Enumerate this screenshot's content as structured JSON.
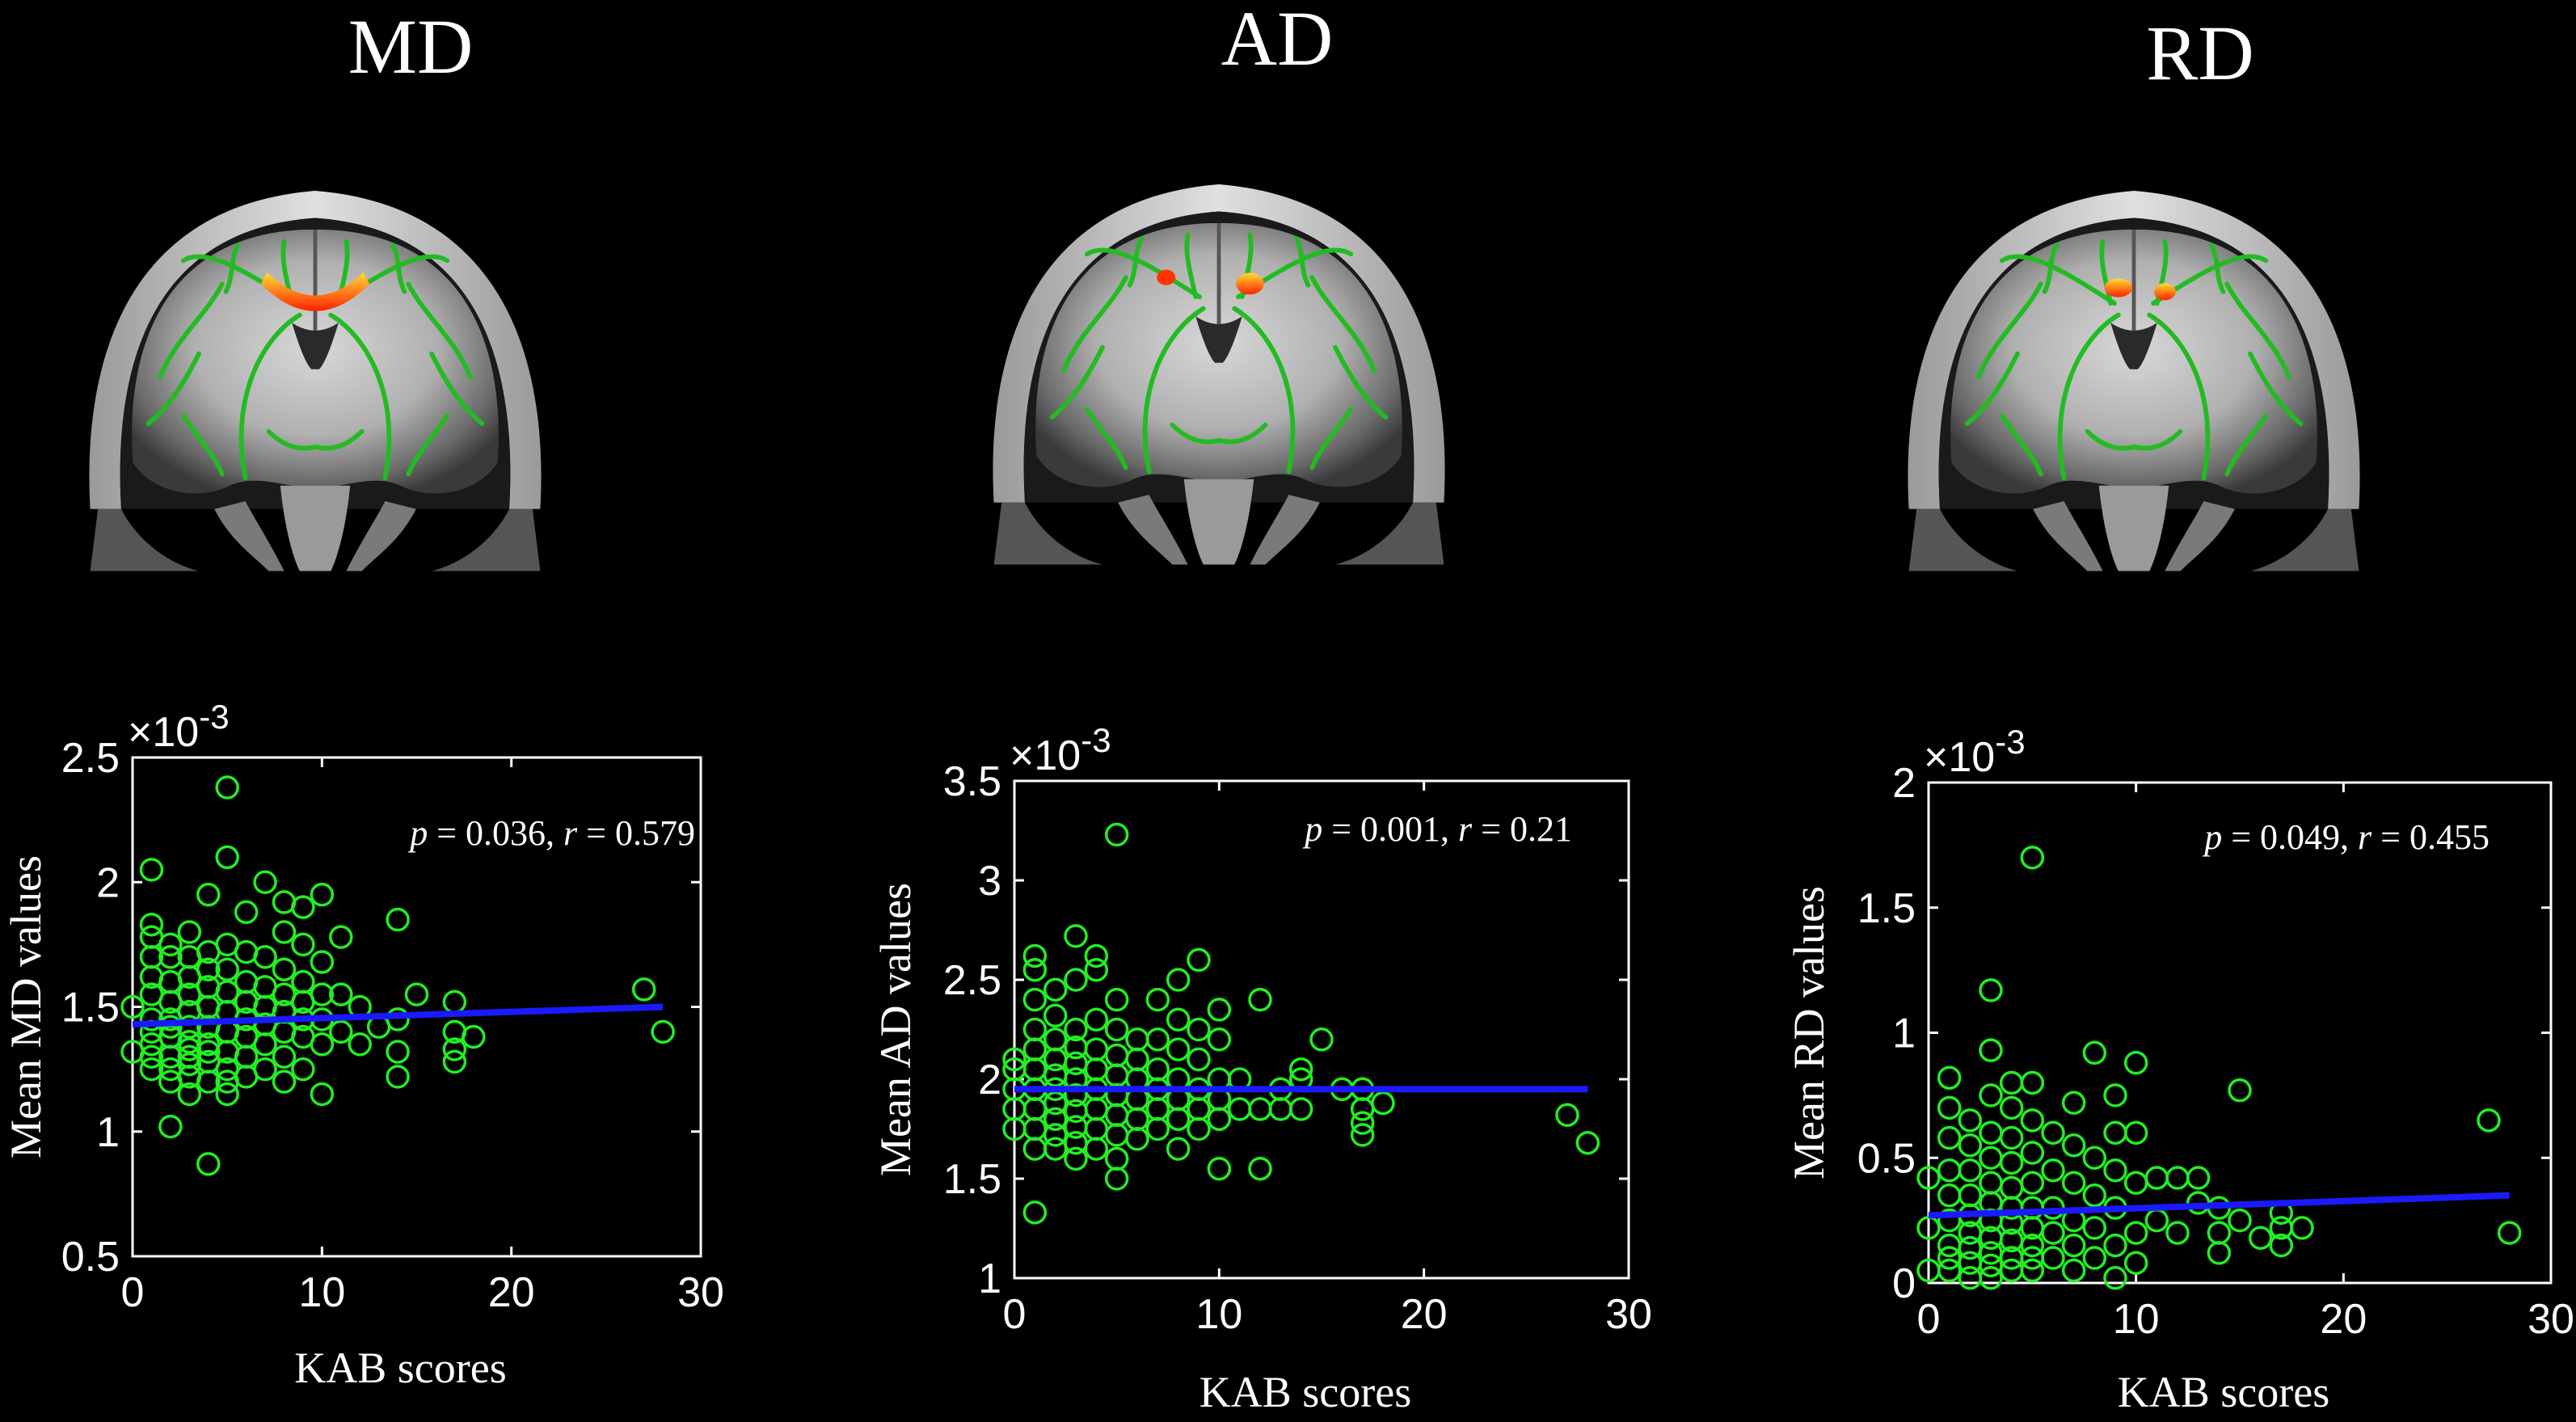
{
  "panels": [
    {
      "title": "MD",
      "annotation": {
        "p_label": "p",
        "p_value": " = 0.036, ",
        "r_label": "r",
        "r_value": " = 0.579"
      },
      "exponent": "×10",
      "exponent_power": "-3",
      "brain_highlight": "single-arc"
    },
    {
      "title": "AD",
      "annotation": {
        "p_label": "p",
        "p_value": " = 0.001, ",
        "r_label": "r",
        "r_value": " = 0.21"
      },
      "exponent": "×10",
      "exponent_power": "-3",
      "brain_highlight": "two-spots"
    },
    {
      "title": "RD",
      "annotation": {
        "p_label": "p",
        "p_value": " = 0.049, ",
        "r_label": "r",
        "r_value": " = 0.455"
      },
      "exponent": "×10",
      "exponent_power": "-3",
      "brain_highlight": "two-spots"
    }
  ],
  "colors": {
    "background": "#000000",
    "points": "#22ee22",
    "fit_line": "#1a1aff",
    "axes": "#ffffff",
    "tract": "#22bb22",
    "highlight": "#ff3300"
  },
  "chart_data": [
    {
      "type": "scatter",
      "title": "",
      "xlabel": "KAB scores",
      "ylabel": "Mean MD values",
      "xlim": [
        0,
        30
      ],
      "ylim": [
        0.5,
        2.5
      ],
      "xticks": [
        "0",
        "10",
        "20",
        "30"
      ],
      "yticks": [
        "0.5",
        "1",
        "1.5",
        "2",
        "2.5"
      ],
      "y_scale_note": "×10-3",
      "fit": {
        "x": [
          0,
          28
        ],
        "y": [
          1.43,
          1.5
        ]
      },
      "points": [
        [
          0,
          1.5
        ],
        [
          0,
          1.32
        ],
        [
          1,
          1.25
        ],
        [
          1,
          1.35
        ],
        [
          1,
          1.45
        ],
        [
          1,
          1.55
        ],
        [
          1,
          1.62
        ],
        [
          1,
          1.7
        ],
        [
          1,
          1.78
        ],
        [
          1,
          1.83
        ],
        [
          1,
          2.05
        ],
        [
          1,
          1.4
        ],
        [
          1,
          1.3
        ],
        [
          2,
          1.2
        ],
        [
          2,
          1.3
        ],
        [
          2,
          1.38
        ],
        [
          2,
          1.45
        ],
        [
          2,
          1.52
        ],
        [
          2,
          1.6
        ],
        [
          2,
          1.7
        ],
        [
          2,
          1.75
        ],
        [
          2,
          1.02
        ],
        [
          2,
          1.25
        ],
        [
          2,
          1.42
        ],
        [
          3,
          1.15
        ],
        [
          3,
          1.22
        ],
        [
          3,
          1.3
        ],
        [
          3,
          1.36
        ],
        [
          3,
          1.42
        ],
        [
          3,
          1.48
        ],
        [
          3,
          1.55
        ],
        [
          3,
          1.62
        ],
        [
          3,
          1.7
        ],
        [
          3,
          1.8
        ],
        [
          3,
          1.33
        ],
        [
          3,
          1.27
        ],
        [
          4,
          0.87
        ],
        [
          4,
          1.2
        ],
        [
          4,
          1.28
        ],
        [
          4,
          1.35
        ],
        [
          4,
          1.42
        ],
        [
          4,
          1.5
        ],
        [
          4,
          1.58
        ],
        [
          4,
          1.65
        ],
        [
          4,
          1.72
        ],
        [
          4,
          1.95
        ],
        [
          4,
          1.32
        ],
        [
          5,
          1.15
        ],
        [
          5,
          1.25
        ],
        [
          5,
          1.32
        ],
        [
          5,
          1.4
        ],
        [
          5,
          1.48
        ],
        [
          5,
          1.56
        ],
        [
          5,
          1.65
        ],
        [
          5,
          1.75
        ],
        [
          5,
          2.1
        ],
        [
          5,
          2.38
        ],
        [
          5,
          1.2
        ],
        [
          6,
          1.22
        ],
        [
          6,
          1.3
        ],
        [
          6,
          1.38
        ],
        [
          6,
          1.45
        ],
        [
          6,
          1.52
        ],
        [
          6,
          1.6
        ],
        [
          6,
          1.72
        ],
        [
          6,
          1.88
        ],
        [
          7,
          1.25
        ],
        [
          7,
          1.35
        ],
        [
          7,
          1.43
        ],
        [
          7,
          1.5
        ],
        [
          7,
          1.58
        ],
        [
          7,
          1.7
        ],
        [
          7,
          2.0
        ],
        [
          8,
          1.2
        ],
        [
          8,
          1.3
        ],
        [
          8,
          1.4
        ],
        [
          8,
          1.48
        ],
        [
          8,
          1.55
        ],
        [
          8,
          1.65
        ],
        [
          8,
          1.8
        ],
        [
          8,
          1.92
        ],
        [
          9,
          1.25
        ],
        [
          9,
          1.38
        ],
        [
          9,
          1.45
        ],
        [
          9,
          1.52
        ],
        [
          9,
          1.6
        ],
        [
          9,
          1.75
        ],
        [
          9,
          1.9
        ],
        [
          10,
          1.15
        ],
        [
          10,
          1.35
        ],
        [
          10,
          1.45
        ],
        [
          10,
          1.55
        ],
        [
          10,
          1.68
        ],
        [
          10,
          1.95
        ],
        [
          11,
          1.4
        ],
        [
          11,
          1.55
        ],
        [
          11,
          1.78
        ],
        [
          12,
          1.35
        ],
        [
          12,
          1.5
        ],
        [
          13,
          1.42
        ],
        [
          14,
          1.22
        ],
        [
          14,
          1.32
        ],
        [
          14,
          1.45
        ],
        [
          14,
          1.85
        ],
        [
          15,
          1.55
        ],
        [
          17,
          1.28
        ],
        [
          17,
          1.33
        ],
        [
          17,
          1.4
        ],
        [
          17,
          1.52
        ],
        [
          18,
          1.38
        ],
        [
          27,
          1.57
        ],
        [
          28,
          1.4
        ]
      ]
    },
    {
      "type": "scatter",
      "title": "",
      "xlabel": "KAB scores",
      "ylabel": "Mean AD values",
      "xlim": [
        0,
        30
      ],
      "ylim": [
        1,
        3.5
      ],
      "xticks": [
        "0",
        "10",
        "20",
        "30"
      ],
      "yticks": [
        "1",
        "1.5",
        "2",
        "2.5",
        "3",
        "3.5"
      ],
      "y_scale_note": "×10-3",
      "fit": {
        "x": [
          0,
          28
        ],
        "y": [
          1.95,
          1.95
        ]
      },
      "points": [
        [
          0,
          1.75
        ],
        [
          0,
          1.85
        ],
        [
          0,
          1.95
        ],
        [
          0,
          2.05
        ],
        [
          0,
          2.1
        ],
        [
          1,
          1.33
        ],
        [
          1,
          1.65
        ],
        [
          1,
          1.75
        ],
        [
          1,
          1.85
        ],
        [
          1,
          1.95
        ],
        [
          1,
          2.05
        ],
        [
          1,
          2.15
        ],
        [
          1,
          2.25
        ],
        [
          1,
          2.55
        ],
        [
          1,
          2.62
        ],
        [
          1,
          2.4
        ],
        [
          2,
          1.65
        ],
        [
          2,
          1.72
        ],
        [
          2,
          1.8
        ],
        [
          2,
          1.88
        ],
        [
          2,
          1.95
        ],
        [
          2,
          2.02
        ],
        [
          2,
          2.1
        ],
        [
          2,
          2.2
        ],
        [
          2,
          2.32
        ],
        [
          2,
          2.45
        ],
        [
          3,
          1.6
        ],
        [
          3,
          1.68
        ],
        [
          3,
          1.76
        ],
        [
          3,
          1.84
        ],
        [
          3,
          1.92
        ],
        [
          3,
          2.0
        ],
        [
          3,
          2.08
        ],
        [
          3,
          2.16
        ],
        [
          3,
          2.25
        ],
        [
          3,
          2.5
        ],
        [
          3,
          2.72
        ],
        [
          4,
          1.65
        ],
        [
          4,
          1.75
        ],
        [
          4,
          1.85
        ],
        [
          4,
          1.95
        ],
        [
          4,
          2.05
        ],
        [
          4,
          2.15
        ],
        [
          4,
          2.3
        ],
        [
          4,
          2.55
        ],
        [
          4,
          2.62
        ],
        [
          5,
          1.5
        ],
        [
          5,
          1.6
        ],
        [
          5,
          1.72
        ],
        [
          5,
          1.82
        ],
        [
          5,
          1.92
        ],
        [
          5,
          2.02
        ],
        [
          5,
          2.12
        ],
        [
          5,
          2.25
        ],
        [
          5,
          2.4
        ],
        [
          5,
          3.23
        ],
        [
          6,
          1.7
        ],
        [
          6,
          1.8
        ],
        [
          6,
          1.9
        ],
        [
          6,
          2.0
        ],
        [
          6,
          2.1
        ],
        [
          6,
          2.2
        ],
        [
          7,
          1.75
        ],
        [
          7,
          1.85
        ],
        [
          7,
          1.95
        ],
        [
          7,
          2.05
        ],
        [
          7,
          2.2
        ],
        [
          7,
          2.4
        ],
        [
          8,
          1.65
        ],
        [
          8,
          1.8
        ],
        [
          8,
          1.9
        ],
        [
          8,
          2.0
        ],
        [
          8,
          2.15
        ],
        [
          8,
          2.3
        ],
        [
          8,
          2.5
        ],
        [
          9,
          1.75
        ],
        [
          9,
          1.85
        ],
        [
          9,
          1.95
        ],
        [
          9,
          2.1
        ],
        [
          9,
          2.25
        ],
        [
          9,
          2.6
        ],
        [
          10,
          1.55
        ],
        [
          10,
          1.8
        ],
        [
          10,
          1.9
        ],
        [
          10,
          2.0
        ],
        [
          10,
          2.2
        ],
        [
          10,
          2.35
        ],
        [
          11,
          1.85
        ],
        [
          11,
          2.0
        ],
        [
          12,
          1.55
        ],
        [
          12,
          1.85
        ],
        [
          12,
          2.4
        ],
        [
          13,
          1.95
        ],
        [
          13,
          1.85
        ],
        [
          14,
          1.85
        ],
        [
          14,
          2.0
        ],
        [
          14,
          2.05
        ],
        [
          15,
          2.2
        ],
        [
          16,
          1.95
        ],
        [
          17,
          1.72
        ],
        [
          17,
          1.78
        ],
        [
          17,
          1.85
        ],
        [
          17,
          1.95
        ],
        [
          18,
          1.88
        ],
        [
          27,
          1.82
        ],
        [
          28,
          1.68
        ]
      ]
    },
    {
      "type": "scatter",
      "title": "",
      "xlabel": "KAB scores",
      "ylabel": "Mean RD values",
      "xlim": [
        0,
        30
      ],
      "ylim": [
        0,
        2
      ],
      "xticks": [
        "0",
        "10",
        "20",
        "30"
      ],
      "yticks": [
        "0",
        "0.5",
        "1",
        "1.5",
        "2"
      ],
      "y_scale_note": "×10-3",
      "fit": {
        "x": [
          0,
          28
        ],
        "y": [
          0.27,
          0.35
        ]
      },
      "points": [
        [
          0,
          0.05
        ],
        [
          0,
          0.22
        ],
        [
          0,
          0.42
        ],
        [
          1,
          0.05
        ],
        [
          1,
          0.15
        ],
        [
          1,
          0.25
        ],
        [
          1,
          0.35
        ],
        [
          1,
          0.45
        ],
        [
          1,
          0.58
        ],
        [
          1,
          0.7
        ],
        [
          1,
          0.82
        ],
        [
          1,
          0.1
        ],
        [
          2,
          0.02
        ],
        [
          2,
          0.08
        ],
        [
          2,
          0.14
        ],
        [
          2,
          0.2
        ],
        [
          2,
          0.27
        ],
        [
          2,
          0.35
        ],
        [
          2,
          0.45
        ],
        [
          2,
          0.55
        ],
        [
          2,
          0.65
        ],
        [
          3,
          0.02
        ],
        [
          3,
          0.07
        ],
        [
          3,
          0.12
        ],
        [
          3,
          0.18
        ],
        [
          3,
          0.25
        ],
        [
          3,
          0.32
        ],
        [
          3,
          0.4
        ],
        [
          3,
          0.5
        ],
        [
          3,
          0.6
        ],
        [
          3,
          0.75
        ],
        [
          3,
          0.93
        ],
        [
          3,
          1.17
        ],
        [
          4,
          0.05
        ],
        [
          4,
          0.1
        ],
        [
          4,
          0.17
        ],
        [
          4,
          0.24
        ],
        [
          4,
          0.3
        ],
        [
          4,
          0.38
        ],
        [
          4,
          0.48
        ],
        [
          4,
          0.58
        ],
        [
          4,
          0.7
        ],
        [
          4,
          0.8
        ],
        [
          5,
          0.05
        ],
        [
          5,
          0.1
        ],
        [
          5,
          0.15
        ],
        [
          5,
          0.22
        ],
        [
          5,
          0.3
        ],
        [
          5,
          0.4
        ],
        [
          5,
          0.52
        ],
        [
          5,
          0.65
        ],
        [
          5,
          0.8
        ],
        [
          5,
          1.7
        ],
        [
          6,
          0.1
        ],
        [
          6,
          0.2
        ],
        [
          6,
          0.3
        ],
        [
          6,
          0.45
        ],
        [
          6,
          0.6
        ],
        [
          7,
          0.05
        ],
        [
          7,
          0.15
        ],
        [
          7,
          0.25
        ],
        [
          7,
          0.4
        ],
        [
          7,
          0.55
        ],
        [
          7,
          0.72
        ],
        [
          8,
          0.1
        ],
        [
          8,
          0.22
        ],
        [
          8,
          0.35
        ],
        [
          8,
          0.5
        ],
        [
          8,
          0.92
        ],
        [
          9,
          0.02
        ],
        [
          9,
          0.15
        ],
        [
          9,
          0.3
        ],
        [
          9,
          0.45
        ],
        [
          9,
          0.6
        ],
        [
          9,
          0.75
        ],
        [
          10,
          0.08
        ],
        [
          10,
          0.2
        ],
        [
          10,
          0.4
        ],
        [
          10,
          0.6
        ],
        [
          10,
          0.88
        ],
        [
          11,
          0.25
        ],
        [
          11,
          0.42
        ],
        [
          12,
          0.2
        ],
        [
          12,
          0.42
        ],
        [
          13,
          0.32
        ],
        [
          13,
          0.42
        ],
        [
          14,
          0.12
        ],
        [
          14,
          0.2
        ],
        [
          14,
          0.3
        ],
        [
          15,
          0.25
        ],
        [
          15,
          0.77
        ],
        [
          16,
          0.18
        ],
        [
          17,
          0.15
        ],
        [
          17,
          0.22
        ],
        [
          17,
          0.28
        ],
        [
          18,
          0.22
        ],
        [
          27,
          0.65
        ],
        [
          28,
          0.2
        ]
      ]
    }
  ]
}
